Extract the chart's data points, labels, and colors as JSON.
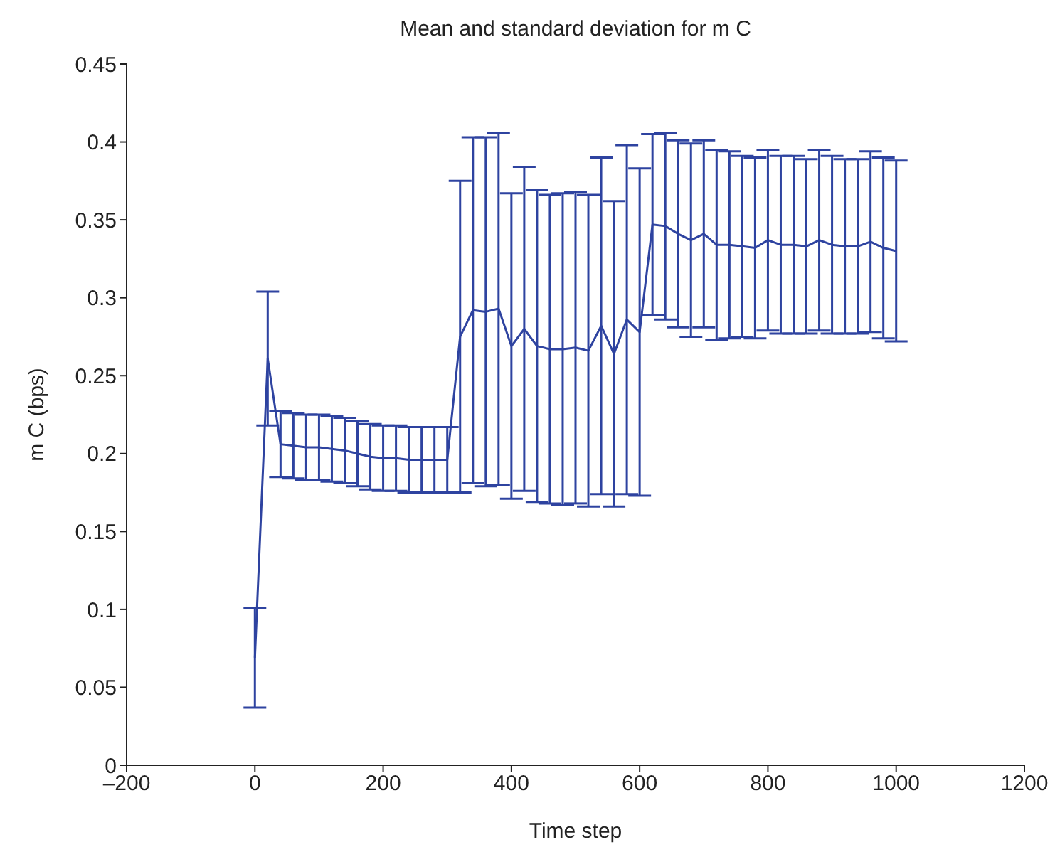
{
  "chart_data": {
    "type": "line",
    "title": "Mean and standard deviation for m C",
    "xlabel": "Time step",
    "ylabel": "m C (bps)",
    "x": [
      0,
      20,
      40,
      60,
      80,
      100,
      120,
      140,
      160,
      180,
      200,
      220,
      240,
      260,
      280,
      300,
      320,
      340,
      360,
      380,
      400,
      420,
      440,
      460,
      480,
      500,
      520,
      540,
      560,
      580,
      600,
      620,
      640,
      660,
      680,
      700,
      720,
      740,
      760,
      780,
      800,
      820,
      840,
      860,
      880,
      900,
      920,
      940,
      960,
      980,
      1000
    ],
    "series": [
      {
        "color": "#2e43a0",
        "values": [
          0.069,
          0.261,
          0.206,
          0.205,
          0.204,
          0.204,
          0.203,
          0.202,
          0.2,
          0.198,
          0.197,
          0.197,
          0.196,
          0.196,
          0.196,
          0.196,
          0.275,
          0.292,
          0.291,
          0.293,
          0.269,
          0.28,
          0.269,
          0.267,
          0.267,
          0.268,
          0.266,
          0.282,
          0.264,
          0.286,
          0.278,
          0.347,
          0.346,
          0.341,
          0.337,
          0.341,
          0.334,
          0.334,
          0.333,
          0.332,
          0.337,
          0.334,
          0.334,
          0.333,
          0.337,
          0.334,
          0.333,
          0.333,
          0.336,
          0.332,
          0.33
        ],
        "errors": [
          0.032,
          0.043,
          0.021,
          0.021,
          0.021,
          0.021,
          0.021,
          0.021,
          0.021,
          0.021,
          0.021,
          0.021,
          0.021,
          0.021,
          0.021,
          0.021,
          0.1,
          0.111,
          0.112,
          0.113,
          0.098,
          0.104,
          0.1,
          0.099,
          0.1,
          0.1,
          0.1,
          0.108,
          0.098,
          0.112,
          0.105,
          0.058,
          0.06,
          0.06,
          0.062,
          0.06,
          0.061,
          0.06,
          0.058,
          0.058,
          0.058,
          0.057,
          0.057,
          0.056,
          0.058,
          0.057,
          0.056,
          0.056,
          0.058,
          0.058,
          0.058
        ]
      }
    ],
    "xlim": [
      -200,
      1200
    ],
    "xticks": [
      {
        "value": -200,
        "label": "–200"
      },
      0,
      200,
      400,
      600,
      800,
      1000,
      1200
    ],
    "ylim": [
      0,
      0.45
    ],
    "yticks": [
      0,
      0.05,
      0.1,
      0.15,
      0.2,
      0.25,
      0.3,
      0.35,
      0.4,
      0.45
    ],
    "grid": false,
    "legend": false,
    "marker": "none",
    "line_style": "solid"
  }
}
